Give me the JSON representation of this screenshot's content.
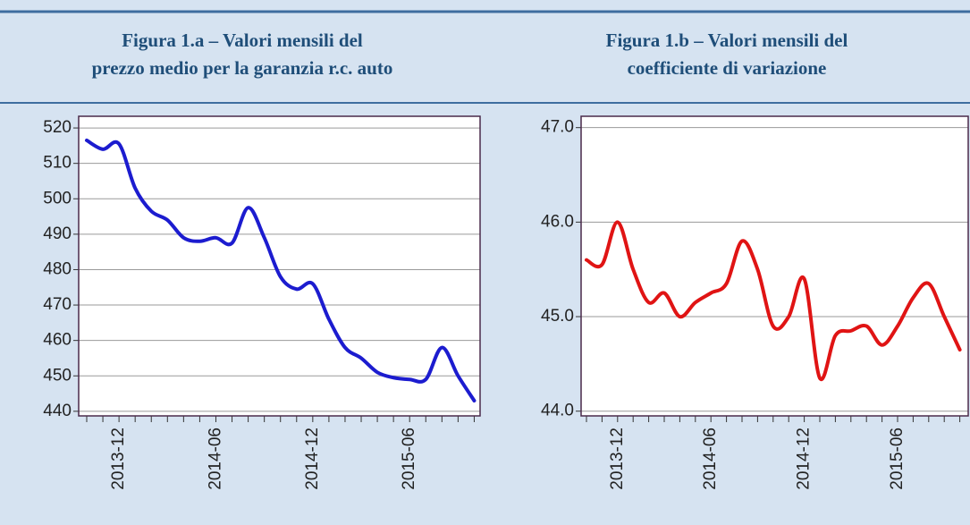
{
  "chart_data": [
    {
      "type": "line",
      "title": [
        "Figura 1.a – Valori mensili del",
        "prezzo medio per la garanzia r.c. auto"
      ],
      "categories": [
        null,
        null,
        "2013-12",
        null,
        null,
        null,
        null,
        null,
        "2014-06",
        null,
        null,
        null,
        null,
        null,
        "2014-12",
        null,
        null,
        null,
        null,
        null,
        "2015-06",
        null,
        null,
        null,
        null
      ],
      "series": [
        {
          "color": "#1c1ccf",
          "values": [
            516.5,
            514,
            515.5,
            503,
            496.5,
            494,
            489,
            488,
            489,
            487.5,
            497.5,
            489,
            478,
            474.5,
            476,
            466,
            458,
            455,
            451,
            449.5,
            449,
            449,
            458,
            450,
            443
          ]
        }
      ],
      "ylim": [
        438.7,
        523.3
      ],
      "yticks": [
        440,
        450,
        460,
        470,
        480,
        490,
        500,
        510,
        520
      ],
      "grid": true
    },
    {
      "type": "line",
      "title": [
        "Figura 1.b – Valori mensili del",
        "coefficiente di variazione"
      ],
      "categories": [
        null,
        null,
        "2013-12",
        null,
        null,
        null,
        null,
        null,
        "2014-06",
        null,
        null,
        null,
        null,
        null,
        "2014-12",
        null,
        null,
        null,
        null,
        null,
        "2015-06",
        null,
        null,
        null,
        null
      ],
      "series": [
        {
          "color": "#e01414",
          "values": [
            45.6,
            45.55,
            46.0,
            45.5,
            45.15,
            45.25,
            45.0,
            45.15,
            45.25,
            45.35,
            45.8,
            45.5,
            44.9,
            45.0,
            45.4,
            44.35,
            44.8,
            44.85,
            44.9,
            44.7,
            44.9,
            45.2,
            45.35,
            45.0,
            44.65
          ]
        }
      ],
      "ylim": [
        43.95,
        47.12
      ],
      "yticks": [
        {
          "value": 44,
          "label": "44.0"
        },
        {
          "value": 45,
          "label": "45.0"
        },
        {
          "value": 46,
          "label": "46.0"
        },
        {
          "value": 47,
          "label": "47.0"
        }
      ],
      "grid": true
    }
  ]
}
